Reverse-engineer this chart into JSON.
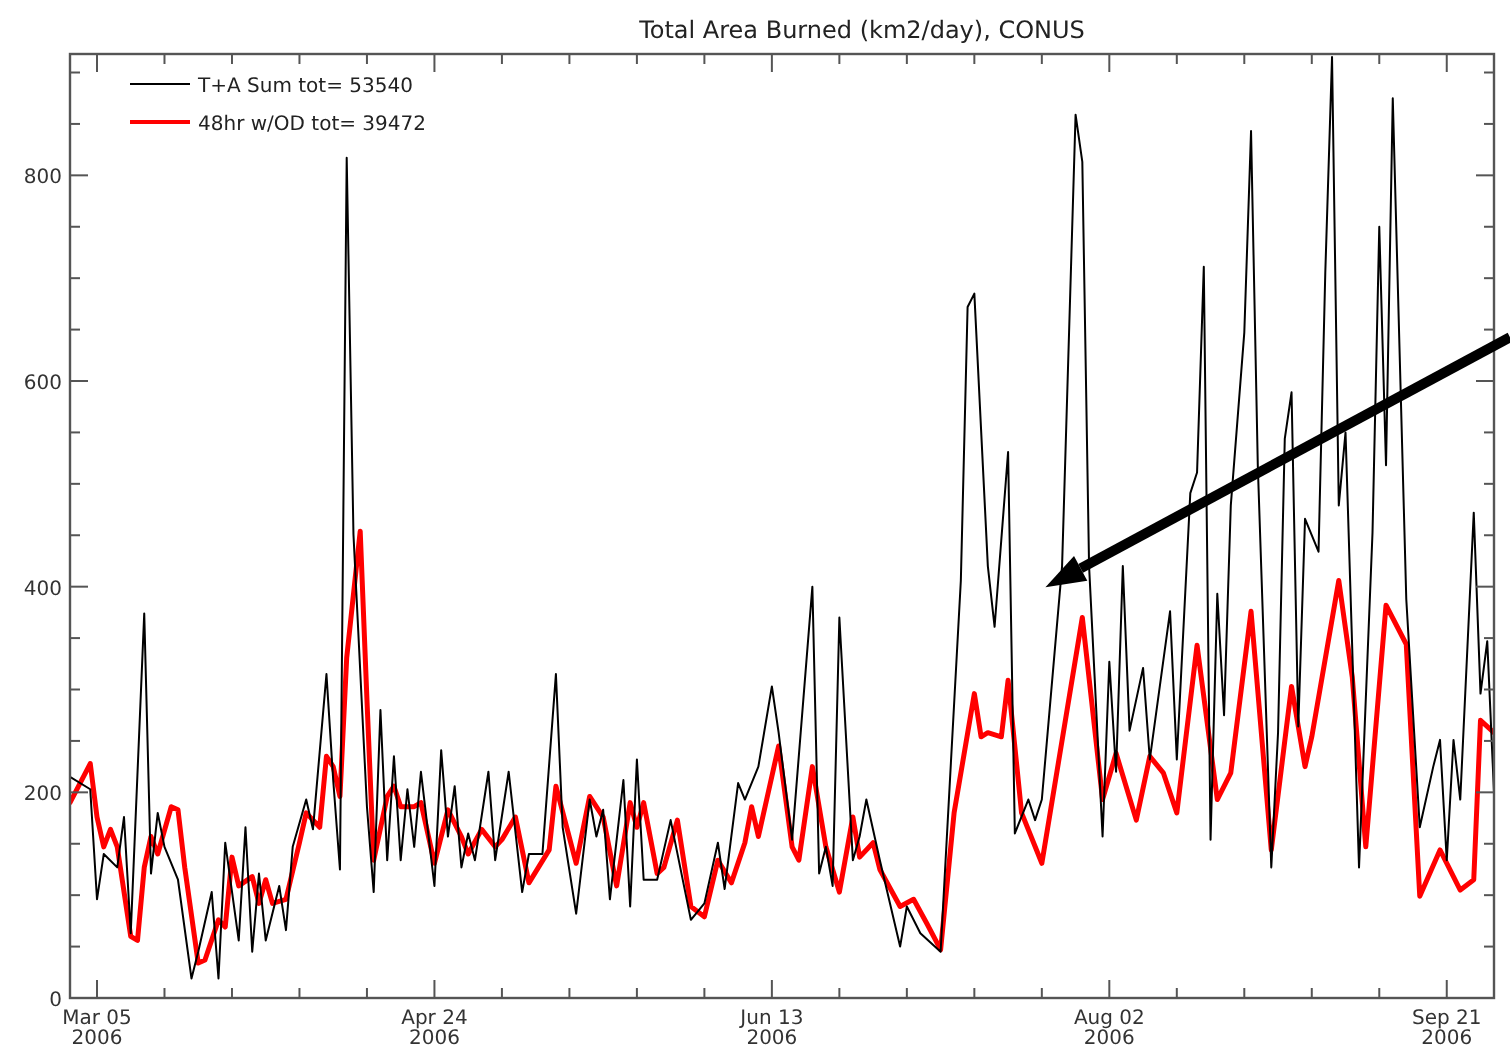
{
  "chart_data": {
    "type": "line",
    "title": "Total Area Burned (km2/day), CONUS",
    "xlim": [
      "2006-03-01",
      "2006-09-28"
    ],
    "xticks": [
      {
        "value": "2006-03-05",
        "label": "Mar 05\n2006"
      },
      {
        "value": "2006-03-15",
        "label": null
      },
      {
        "value": "2006-03-25",
        "label": null
      },
      {
        "value": "2006-04-04",
        "label": null
      },
      {
        "value": "2006-04-14",
        "label": null
      },
      {
        "value": "2006-04-24",
        "label": "Apr 24\n2006"
      },
      {
        "value": "2006-05-04",
        "label": null
      },
      {
        "value": "2006-05-14",
        "label": null
      },
      {
        "value": "2006-05-24",
        "label": null
      },
      {
        "value": "2006-06-03",
        "label": null
      },
      {
        "value": "2006-06-13",
        "label": "Jun 13\n2006"
      },
      {
        "value": "2006-06-23",
        "label": null
      },
      {
        "value": "2006-07-03",
        "label": null
      },
      {
        "value": "2006-07-13",
        "label": null
      },
      {
        "value": "2006-07-23",
        "label": null
      },
      {
        "value": "2006-08-02",
        "label": "Aug 02\n2006"
      },
      {
        "value": "2006-08-12",
        "label": null
      },
      {
        "value": "2006-08-22",
        "label": null
      },
      {
        "value": "2006-09-01",
        "label": null
      },
      {
        "value": "2006-09-11",
        "label": null
      },
      {
        "value": "2006-09-21",
        "label": "Sep 21\n2006"
      }
    ],
    "ylim": [
      0,
      918
    ],
    "yticks": [
      0,
      {
        "value": 50,
        "label": null
      },
      {
        "value": 100,
        "label": null
      },
      {
        "value": 150,
        "label": null
      },
      200,
      {
        "value": 250,
        "label": null
      },
      {
        "value": 300,
        "label": null
      },
      {
        "value": 350,
        "label": null
      },
      400,
      {
        "value": 450,
        "label": null
      },
      {
        "value": 500,
        "label": null
      },
      {
        "value": 550,
        "label": null
      },
      600,
      {
        "value": 650,
        "label": null
      },
      {
        "value": 700,
        "label": null
      },
      {
        "value": 750,
        "label": null
      },
      800,
      {
        "value": 850,
        "label": null
      },
      {
        "value": 900,
        "label": null
      }
    ],
    "grid": false,
    "legend": "top left",
    "marker": "none",
    "series": [
      {
        "name": "T+A Sum tot= 53540",
        "color": "#000000",
        "line_style": "solid",
        "x": [
          "2006-03-01",
          "2006-03-04",
          "2006-03-05",
          "2006-03-06",
          "2006-03-08",
          "2006-03-09",
          "2006-03-10",
          "2006-03-12",
          "2006-03-13",
          "2006-03-14",
          "2006-03-15",
          "2006-03-17",
          "2006-03-19",
          "2006-03-20",
          "2006-03-22",
          "2006-03-23",
          "2006-03-24",
          "2006-03-26",
          "2006-03-27",
          "2006-03-28",
          "2006-03-29",
          "2006-03-30",
          "2006-04-01",
          "2006-04-02",
          "2006-04-03",
          "2006-04-05",
          "2006-04-06",
          "2006-04-08",
          "2006-04-09",
          "2006-04-10",
          "2006-04-11",
          "2006-04-12",
          "2006-04-14",
          "2006-04-15",
          "2006-04-16",
          "2006-04-17",
          "2006-04-18",
          "2006-04-19",
          "2006-04-20",
          "2006-04-21",
          "2006-04-22",
          "2006-04-24",
          "2006-04-25",
          "2006-04-26",
          "2006-04-27",
          "2006-04-28",
          "2006-04-29",
          "2006-04-30",
          "2006-05-02",
          "2006-05-03",
          "2006-05-05",
          "2006-05-07",
          "2006-05-08",
          "2006-05-10",
          "2006-05-12",
          "2006-05-13",
          "2006-05-15",
          "2006-05-17",
          "2006-05-18",
          "2006-05-19",
          "2006-05-20",
          "2006-05-22",
          "2006-05-23",
          "2006-05-24",
          "2006-05-25",
          "2006-05-27",
          "2006-05-29",
          "2006-06-01",
          "2006-06-03",
          "2006-06-05",
          "2006-06-06",
          "2006-06-08",
          "2006-06-09",
          "2006-06-11",
          "2006-06-13",
          "2006-06-14",
          "2006-06-16",
          "2006-06-19",
          "2006-06-20",
          "2006-06-21",
          "2006-06-22",
          "2006-06-23",
          "2006-06-25",
          "2006-06-26",
          "2006-06-27",
          "2006-06-29",
          "2006-07-02",
          "2006-07-03",
          "2006-07-05",
          "2006-07-08",
          "2006-07-11",
          "2006-07-12",
          "2006-07-13",
          "2006-07-15",
          "2006-07-16",
          "2006-07-18",
          "2006-07-19",
          "2006-07-21",
          "2006-07-22",
          "2006-07-23",
          "2006-07-26",
          "2006-07-28",
          "2006-07-29",
          "2006-07-30",
          "2006-08-01",
          "2006-08-02",
          "2006-08-03",
          "2006-08-04",
          "2006-08-05",
          "2006-08-07",
          "2006-08-08",
          "2006-08-11",
          "2006-08-12",
          "2006-08-14",
          "2006-08-15",
          "2006-08-16",
          "2006-08-17",
          "2006-08-18",
          "2006-08-19",
          "2006-08-20",
          "2006-08-22",
          "2006-08-23",
          "2006-08-24",
          "2006-08-26",
          "2006-08-27",
          "2006-08-28",
          "2006-08-29",
          "2006-08-30",
          "2006-08-31",
          "2006-09-02",
          "2006-09-03",
          "2006-09-04",
          "2006-09-05",
          "2006-09-06",
          "2006-09-08",
          "2006-09-10",
          "2006-09-11",
          "2006-09-12",
          "2006-09-13",
          "2006-09-15",
          "2006-09-17",
          "2006-09-19",
          "2006-09-20",
          "2006-09-21",
          "2006-09-22",
          "2006-09-23",
          "2006-09-25",
          "2006-09-26",
          "2006-09-27",
          "2006-09-28"
        ],
        "values": [
          215,
          203,
          96,
          140,
          127,
          176,
          63,
          374,
          121,
          180,
          147,
          115,
          19,
          45,
          103,
          19,
          151,
          56,
          166,
          45,
          121,
          56,
          109,
          66,
          147,
          193,
          164,
          315,
          212,
          125,
          817,
          451,
          186,
          103,
          280,
          134,
          235,
          134,
          203,
          147,
          220,
          109,
          241,
          157,
          206,
          127,
          160,
          134,
          220,
          134,
          220,
          103,
          140,
          140,
          315,
          166,
          82,
          193,
          157,
          183,
          96,
          212,
          89,
          232,
          115,
          115,
          173,
          76,
          92,
          151,
          106,
          209,
          193,
          225,
          303,
          258,
          154,
          400,
          121,
          147,
          109,
          370,
          134,
          157,
          193,
          134,
          50,
          89,
          63,
          45,
          406,
          672,
          685,
          420,
          361,
          531,
          160,
          193,
          173,
          193,
          420,
          859,
          813,
          420,
          157,
          327,
          220,
          420,
          260,
          321,
          232,
          376,
          232,
          491,
          511,
          711,
          154,
          393,
          275,
          479,
          647,
          843,
          518,
          127,
          258,
          544,
          589,
          264,
          466,
          434,
          705,
          915,
          479,
          550,
          127,
          453,
          750,
          518,
          875,
          388,
          166,
          225,
          251,
          134,
          251,
          193,
          472,
          296,
          347,
          200
        ]
      },
      {
        "name": "48hr w/OD tot= 39472",
        "color": "#ff0000",
        "line_style": "solid",
        "x": [
          "2006-03-01",
          "2006-03-04",
          "2006-03-05",
          "2006-03-06",
          "2006-03-07",
          "2006-03-08",
          "2006-03-10",
          "2006-03-11",
          "2006-03-12",
          "2006-03-13",
          "2006-03-14",
          "2006-03-16",
          "2006-03-17",
          "2006-03-18",
          "2006-03-20",
          "2006-03-21",
          "2006-03-23",
          "2006-03-24",
          "2006-03-25",
          "2006-03-26",
          "2006-03-28",
          "2006-03-29",
          "2006-03-30",
          "2006-03-31",
          "2006-04-02",
          "2006-04-04",
          "2006-04-05",
          "2006-04-07",
          "2006-04-08",
          "2006-04-09",
          "2006-04-10",
          "2006-04-11",
          "2006-04-13",
          "2006-04-14",
          "2006-04-15",
          "2006-04-17",
          "2006-04-18",
          "2006-04-19",
          "2006-04-21",
          "2006-04-22",
          "2006-04-24",
          "2006-04-26",
          "2006-04-28",
          "2006-04-29",
          "2006-05-01",
          "2006-05-03",
          "2006-05-04",
          "2006-05-06",
          "2006-05-08",
          "2006-05-11",
          "2006-05-12",
          "2006-05-15",
          "2006-05-17",
          "2006-05-19",
          "2006-05-21",
          "2006-05-23",
          "2006-05-24",
          "2006-05-25",
          "2006-05-27",
          "2006-05-28",
          "2006-05-30",
          "2006-06-01",
          "2006-06-03",
          "2006-06-05",
          "2006-06-07",
          "2006-06-09",
          "2006-06-10",
          "2006-06-11",
          "2006-06-14",
          "2006-06-16",
          "2006-06-17",
          "2006-06-19",
          "2006-06-21",
          "2006-06-23",
          "2006-06-25",
          "2006-06-26",
          "2006-06-28",
          "2006-06-29",
          "2006-07-02",
          "2006-07-04",
          "2006-07-06",
          "2006-07-08",
          "2006-07-10",
          "2006-07-13",
          "2006-07-14",
          "2006-07-15",
          "2006-07-17",
          "2006-07-18",
          "2006-07-20",
          "2006-07-23",
          "2006-07-29",
          "2006-08-01",
          "2006-08-03",
          "2006-08-06",
          "2006-08-08",
          "2006-08-10",
          "2006-08-12",
          "2006-08-15",
          "2006-08-18",
          "2006-08-20",
          "2006-08-23",
          "2006-08-26",
          "2006-08-29",
          "2006-08-31",
          "2006-09-01",
          "2006-09-05",
          "2006-09-07",
          "2006-09-09",
          "2006-09-12",
          "2006-09-15",
          "2006-09-17",
          "2006-09-20",
          "2006-09-23",
          "2006-09-25",
          "2006-09-26",
          "2006-09-28"
        ],
        "values": [
          190,
          228,
          176,
          147,
          164,
          147,
          60,
          56,
          127,
          157,
          140,
          186,
          183,
          127,
          34,
          37,
          76,
          69,
          137,
          109,
          118,
          92,
          115,
          92,
          96,
          151,
          180,
          166,
          235,
          225,
          196,
          331,
          454,
          290,
          134,
          196,
          206,
          186,
          186,
          190,
          131,
          183,
          157,
          140,
          164,
          147,
          154,
          176,
          112,
          144,
          206,
          131,
          196,
          176,
          109,
          190,
          166,
          190,
          121,
          127,
          173,
          89,
          79,
          134,
          112,
          151,
          186,
          157,
          245,
          147,
          134,
          225,
          147,
          103,
          176,
          137,
          151,
          125,
          89,
          96,
          72,
          47,
          180,
          296,
          254,
          258,
          254,
          309,
          180,
          131,
          370,
          193,
          238,
          173,
          235,
          219,
          180,
          343,
          193,
          219,
          376,
          144,
          303,
          225,
          254,
          406,
          312,
          147,
          382,
          344,
          99,
          144,
          105,
          115,
          270,
          258
        ]
      }
    ]
  }
}
